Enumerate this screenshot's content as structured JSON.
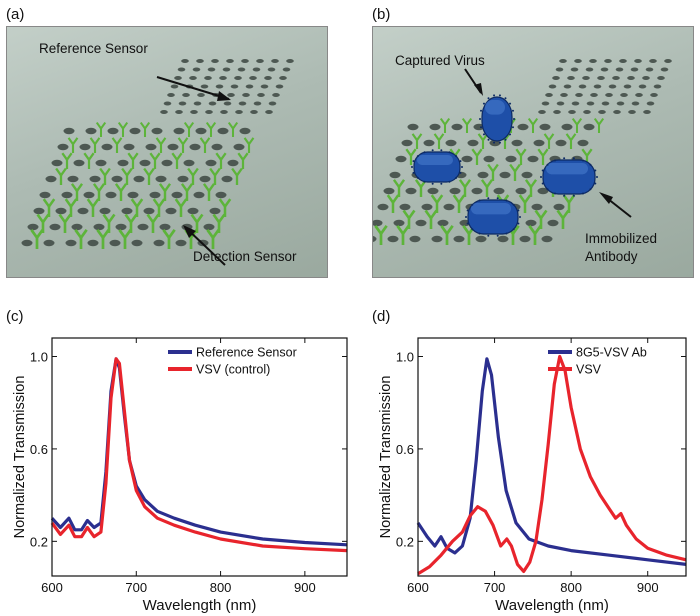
{
  "panel_labels": [
    "(a)",
    "(b)",
    "(c)",
    "(d)"
  ],
  "illustration_a": {
    "annotations": [
      "Reference Sensor",
      "Detection Sensor"
    ]
  },
  "illustration_b": {
    "annotations": [
      "Captured Virus",
      "Immobilized",
      "Antibody"
    ]
  },
  "colors": {
    "blue": "#2b2f8f",
    "red": "#e8242c",
    "antibody_green": "#5db43a",
    "virus_blue": "#1e4fa8"
  },
  "chart_data": [
    {
      "type": "line",
      "xlabel": "Wavelength (nm)",
      "ylabel": "Normalized Transmission",
      "xlim": [
        600,
        950
      ],
      "ylim": [
        0.05,
        1.08
      ],
      "xticks": [
        600,
        700,
        800,
        900
      ],
      "yticks": [
        0.2,
        0.6,
        1.0
      ],
      "ytick_labels": [
        "0.2",
        "0.6",
        "1.0"
      ],
      "legend_position": "top-right",
      "grid": false,
      "series": [
        {
          "name": "Reference Sensor",
          "color": "#2b2f8f",
          "points": [
            [
              600,
              0.3
            ],
            [
              610,
              0.26
            ],
            [
              620,
              0.3
            ],
            [
              627,
              0.25
            ],
            [
              635,
              0.25
            ],
            [
              642,
              0.29
            ],
            [
              650,
              0.26
            ],
            [
              658,
              0.28
            ],
            [
              664,
              0.5
            ],
            [
              670,
              0.85
            ],
            [
              676,
              0.99
            ],
            [
              680,
              0.95
            ],
            [
              686,
              0.74
            ],
            [
              692,
              0.55
            ],
            [
              700,
              0.44
            ],
            [
              710,
              0.38
            ],
            [
              725,
              0.33
            ],
            [
              745,
              0.3
            ],
            [
              770,
              0.27
            ],
            [
              800,
              0.24
            ],
            [
              850,
              0.21
            ],
            [
              900,
              0.195
            ],
            [
              950,
              0.185
            ]
          ]
        },
        {
          "name": "VSV  (control)",
          "color": "#e8242c",
          "points": [
            [
              600,
              0.28
            ],
            [
              610,
              0.23
            ],
            [
              620,
              0.27
            ],
            [
              627,
              0.22
            ],
            [
              635,
              0.22
            ],
            [
              642,
              0.26
            ],
            [
              650,
              0.22
            ],
            [
              658,
              0.24
            ],
            [
              664,
              0.45
            ],
            [
              670,
              0.82
            ],
            [
              676,
              0.99
            ],
            [
              680,
              0.97
            ],
            [
              686,
              0.76
            ],
            [
              692,
              0.55
            ],
            [
              700,
              0.42
            ],
            [
              710,
              0.35
            ],
            [
              725,
              0.3
            ],
            [
              745,
              0.27
            ],
            [
              770,
              0.24
            ],
            [
              800,
              0.21
            ],
            [
              850,
              0.18
            ],
            [
              900,
              0.168
            ],
            [
              950,
              0.16
            ]
          ]
        }
      ]
    },
    {
      "type": "line",
      "xlabel": "Wavelength (nm)",
      "ylabel": "Normalized Transmission",
      "xlim": [
        600,
        950
      ],
      "ylim": [
        0.05,
        1.08
      ],
      "xticks": [
        600,
        700,
        800,
        900
      ],
      "yticks": [
        0.2,
        0.6,
        1.0
      ],
      "ytick_labels": [
        "0.2",
        "0.6",
        "1.0"
      ],
      "legend_position": "top-right",
      "grid": false,
      "series": [
        {
          "name": "8G5-VSV Ab",
          "color": "#2b2f8f",
          "points": [
            [
              600,
              0.28
            ],
            [
              612,
              0.22
            ],
            [
              622,
              0.18
            ],
            [
              630,
              0.22
            ],
            [
              638,
              0.17
            ],
            [
              648,
              0.15
            ],
            [
              658,
              0.18
            ],
            [
              668,
              0.3
            ],
            [
              676,
              0.55
            ],
            [
              684,
              0.85
            ],
            [
              690,
              0.99
            ],
            [
              696,
              0.92
            ],
            [
              705,
              0.65
            ],
            [
              715,
              0.42
            ],
            [
              728,
              0.28
            ],
            [
              745,
              0.21
            ],
            [
              770,
              0.18
            ],
            [
              800,
              0.16
            ],
            [
              850,
              0.14
            ],
            [
              900,
              0.12
            ],
            [
              950,
              0.1
            ]
          ]
        },
        {
          "name": "VSV",
          "color": "#e8242c",
          "points": [
            [
              600,
              0.06
            ],
            [
              615,
              0.09
            ],
            [
              630,
              0.14
            ],
            [
              645,
              0.2
            ],
            [
              658,
              0.24
            ],
            [
              668,
              0.31
            ],
            [
              678,
              0.35
            ],
            [
              688,
              0.33
            ],
            [
              698,
              0.27
            ],
            [
              708,
              0.18
            ],
            [
              716,
              0.21
            ],
            [
              722,
              0.18
            ],
            [
              730,
              0.1
            ],
            [
              738,
              0.07
            ],
            [
              746,
              0.11
            ],
            [
              754,
              0.2
            ],
            [
              762,
              0.38
            ],
            [
              770,
              0.62
            ],
            [
              778,
              0.88
            ],
            [
              785,
              1.0
            ],
            [
              792,
              0.94
            ],
            [
              800,
              0.78
            ],
            [
              812,
              0.6
            ],
            [
              825,
              0.48
            ],
            [
              838,
              0.4
            ],
            [
              850,
              0.34
            ],
            [
              858,
              0.3
            ],
            [
              865,
              0.32
            ],
            [
              872,
              0.27
            ],
            [
              885,
              0.21
            ],
            [
              900,
              0.17
            ],
            [
              925,
              0.14
            ],
            [
              950,
              0.12
            ]
          ]
        }
      ]
    }
  ]
}
